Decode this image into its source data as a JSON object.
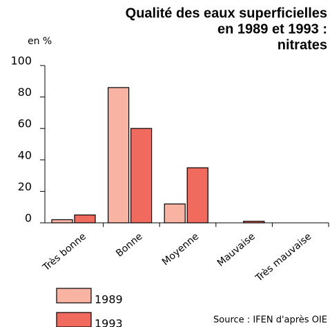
{
  "chart_data": {
    "type": "bar",
    "title": [
      "Qualité des eaux superficielles",
      "en 1989 et 1993 :",
      "nitrates"
    ],
    "ylabel": "en %",
    "categories": [
      "Très bonne",
      "Bonne",
      "Moyenne",
      "Mauvaise",
      "Très mauvaise"
    ],
    "series": [
      {
        "name": "1989",
        "color": "#f9b3a2",
        "values": [
          2,
          86,
          12,
          0,
          0
        ]
      },
      {
        "name": "1993",
        "color": "#f06b5e",
        "values": [
          5,
          60,
          35,
          1,
          0
        ]
      }
    ],
    "ylim": [
      0,
      100
    ],
    "yticks": [
      0,
      20,
      40,
      60,
      80,
      100
    ],
    "source": "Source : IFEN d'après OIE"
  }
}
